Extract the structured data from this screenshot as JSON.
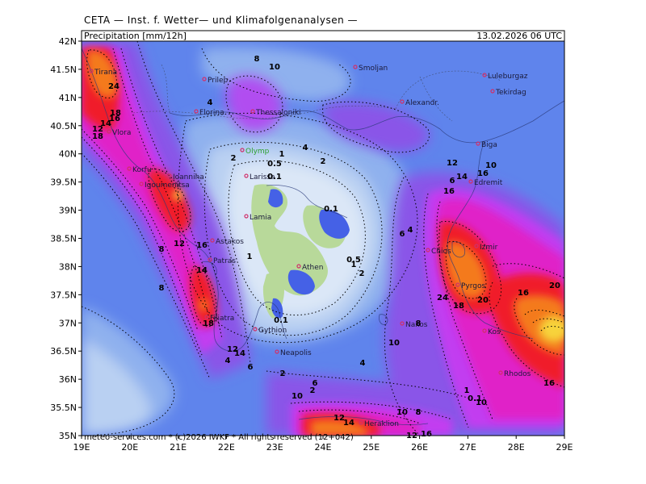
{
  "header": {
    "title": "CETA — Inst. f. Wetter— und Klimafolgenanalysen —"
  },
  "map": {
    "parameter_label": "Precipitation [mm/12h]",
    "valid_time": "13.02.2026 06 UTC",
    "footer_credit": "meteo-services.com * (c)2026 IWKF * All rights reserved (12+042)",
    "lat_labels": [
      "42N",
      "41.5N",
      "41N",
      "40.5N",
      "40N",
      "39.5N",
      "39N",
      "38.5N",
      "38N",
      "37.5N",
      "37N",
      "36.5N",
      "36N",
      "35.5N",
      "35N"
    ],
    "lon_labels": [
      "19E",
      "20E",
      "21E",
      "22E",
      "23E",
      "24E",
      "25E",
      "26E",
      "27E",
      "28E",
      "29E"
    ],
    "colors": {
      "land_light": "#b8d99a",
      "very_low": "#dbe7f7",
      "low": "#b9d0f2",
      "mid_low": "#8fb1ee",
      "mid": "#5f84ec",
      "deep_blue": "#4561e6",
      "violet": "#8a55e8",
      "purple": "#c23ef0",
      "magenta": "#e020c8",
      "red": "#f01e2a",
      "orange": "#f47a1a",
      "yellow": "#f7d33a"
    },
    "cities": [
      {
        "name": "Tirana"
      },
      {
        "name": "Prilep"
      },
      {
        "name": "Florina"
      },
      {
        "name": "Thessaloniki"
      },
      {
        "name": "Smoljan"
      },
      {
        "name": "Alexandr."
      },
      {
        "name": "Luleburgaz"
      },
      {
        "name": "Tekirdag"
      },
      {
        "name": "Vlora"
      },
      {
        "name": "Korfu"
      },
      {
        "name": "Ioannina"
      },
      {
        "name": "Igoumenitsa"
      },
      {
        "name": "Olymp"
      },
      {
        "name": "Larissa"
      },
      {
        "name": "Biga"
      },
      {
        "name": "Edremit"
      },
      {
        "name": "Lamia"
      },
      {
        "name": "Astakos"
      },
      {
        "name": "Patras"
      },
      {
        "name": "Athen"
      },
      {
        "name": "Chios"
      },
      {
        "name": "Izmir"
      },
      {
        "name": "Pyrgos"
      },
      {
        "name": "Filiatra"
      },
      {
        "name": "Gythion"
      },
      {
        "name": "Naxos"
      },
      {
        "name": "Kos"
      },
      {
        "name": "Neapolis"
      },
      {
        "name": "Rhodos"
      },
      {
        "name": "Heraklion"
      }
    ],
    "contour_labels": [
      "8",
      "10",
      "24",
      "18",
      "12",
      "14",
      "16",
      "18",
      "4",
      "2",
      "4",
      "1",
      "0.5",
      "0.1",
      "2",
      "0.1",
      "6",
      "4",
      "8",
      "12",
      "16",
      "1",
      "2",
      "0.5",
      "1",
      "0.1",
      "14",
      "18",
      "6",
      "16",
      "24",
      "18",
      "20",
      "16",
      "20",
      "16",
      "12",
      "14",
      "10",
      "8",
      "4",
      "6",
      "10",
      "12",
      "14",
      "12",
      "16",
      "10",
      "8",
      "6",
      "4",
      "2",
      "2",
      "1",
      "0.1",
      "10",
      "12",
      "14",
      "16",
      "10",
      "8"
    ]
  }
}
